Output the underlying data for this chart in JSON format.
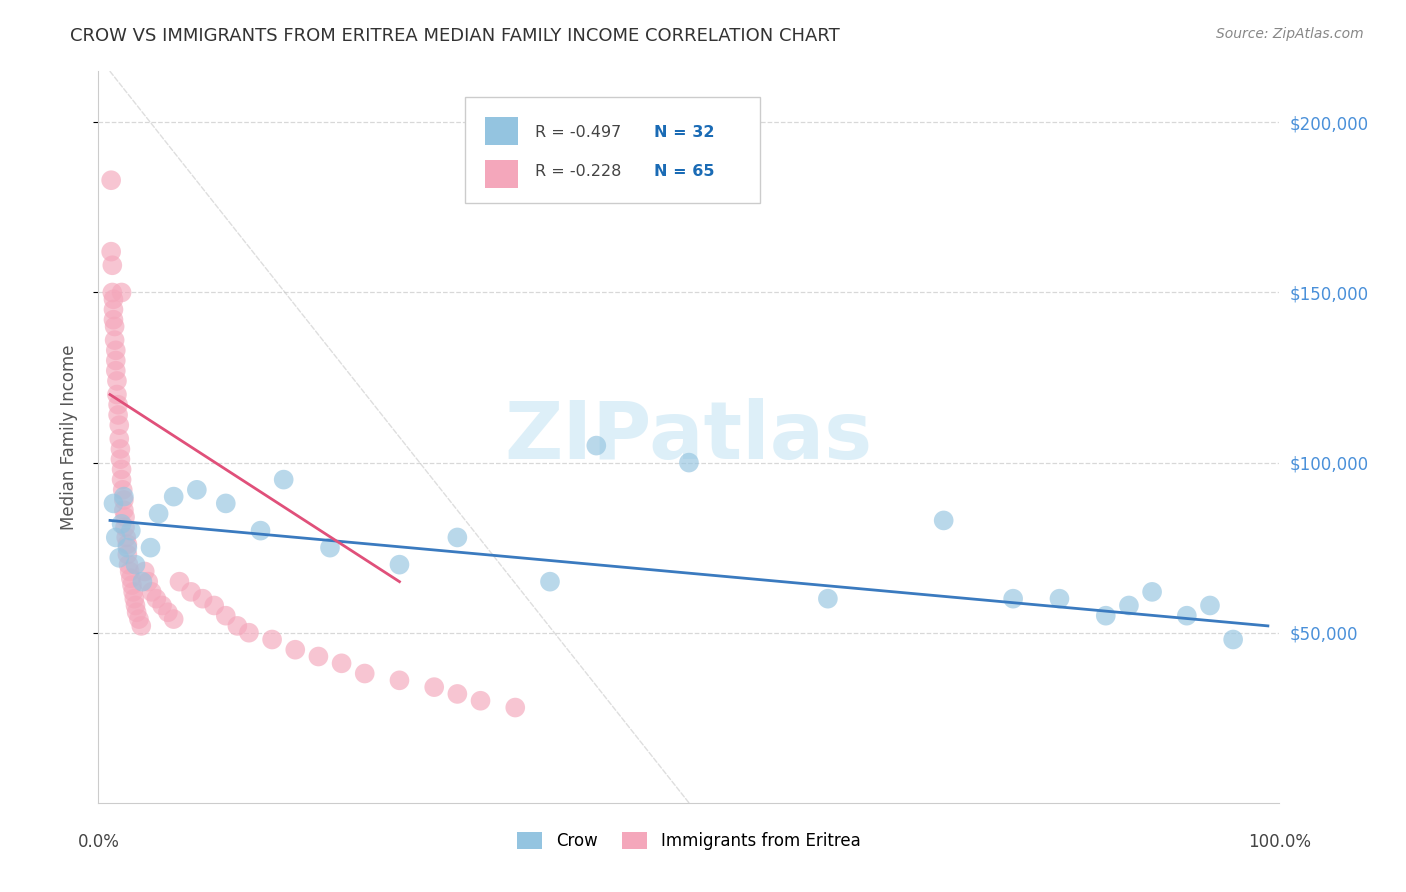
{
  "title": "CROW VS IMMIGRANTS FROM ERITREA MEDIAN FAMILY INCOME CORRELATION CHART",
  "source": "Source: ZipAtlas.com",
  "ylabel": "Median Family Income",
  "y_ticks": [
    50000,
    100000,
    150000,
    200000
  ],
  "y_tick_labels": [
    "$50,000",
    "$100,000",
    "$150,000",
    "$200,000"
  ],
  "xlim": [
    0.0,
    1.0
  ],
  "ylim": [
    0,
    215000
  ],
  "crow_color": "#94c4e0",
  "eritrea_color": "#f4a7bb",
  "crow_line_color": "#3a7abf",
  "eritrea_line_color": "#e0507a",
  "watermark_color": "#d6eaf8",
  "legend_label_crow": "Crow",
  "legend_label_eritrea": "Immigrants from Eritrea",
  "r_crow": "-0.497",
  "n_crow": "32",
  "r_eritrea": "-0.228",
  "n_eritrea": "65",
  "crow_x": [
    0.003,
    0.005,
    0.007,
    0.009,
    0.011,
    0.013,
    0.016,
    0.019,
    0.022,
    0.026,
    0.032,
    0.04,
    0.055,
    0.075,
    0.1,
    0.13,
    0.15,
    0.19,
    0.25,
    0.3,
    0.35,
    0.42,
    0.5,
    0.62,
    0.72,
    0.78,
    0.82,
    0.86,
    0.88,
    0.9,
    0.93,
    0.96
  ],
  "crow_y": [
    88000,
    78000,
    72000,
    82000,
    90000,
    75000,
    80000,
    70000,
    68000,
    85000,
    75000,
    65000,
    90000,
    92000,
    88000,
    80000,
    75000,
    95000,
    70000,
    78000,
    68000,
    105000,
    100000,
    60000,
    83000,
    62000,
    60000,
    55000,
    58000,
    62000,
    55000,
    48000
  ],
  "eritrea_x": [
    0.001,
    0.001,
    0.002,
    0.002,
    0.003,
    0.003,
    0.004,
    0.004,
    0.005,
    0.005,
    0.006,
    0.006,
    0.007,
    0.007,
    0.008,
    0.008,
    0.009,
    0.009,
    0.01,
    0.01,
    0.011,
    0.011,
    0.012,
    0.013,
    0.013,
    0.014,
    0.015,
    0.015,
    0.016,
    0.017,
    0.018,
    0.019,
    0.02,
    0.021,
    0.022,
    0.023,
    0.025,
    0.026,
    0.028,
    0.03,
    0.032,
    0.034,
    0.036,
    0.038,
    0.04,
    0.042,
    0.045,
    0.048,
    0.05,
    0.055,
    0.06,
    0.065,
    0.07,
    0.08,
    0.09,
    0.1,
    0.11,
    0.12,
    0.14,
    0.16,
    0.18,
    0.2,
    0.22,
    0.25,
    0.28
  ],
  "eritrea_y": [
    183000,
    168000,
    162000,
    155000,
    152000,
    148000,
    145000,
    142000,
    140000,
    136000,
    133000,
    130000,
    127000,
    124000,
    121000,
    118000,
    115000,
    112000,
    110000,
    107000,
    104000,
    101000,
    98000,
    95000,
    93000,
    90000,
    88000,
    85000,
    82000,
    80000,
    78000,
    76000,
    74000,
    72000,
    70000,
    68000,
    66000,
    64000,
    62000,
    60000,
    58000,
    56000,
    54000,
    52000,
    50000,
    48000,
    46000,
    44000,
    42000,
    40000,
    65000,
    62000,
    58000,
    55000,
    52000,
    50000,
    48000,
    45000,
    42000,
    40000,
    38000,
    36000,
    34000,
    32000,
    30000
  ]
}
